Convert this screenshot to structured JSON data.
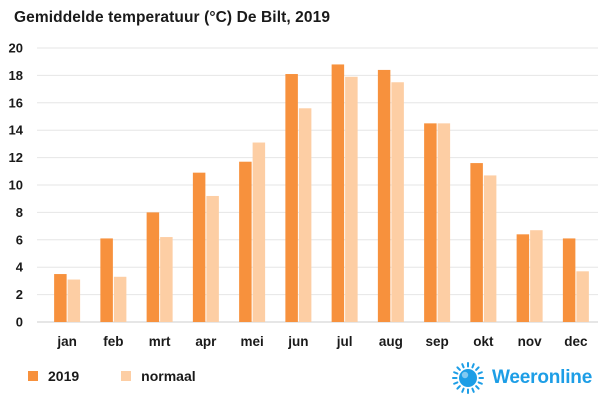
{
  "chart_data": {
    "type": "bar",
    "title": "Gemiddelde temperatuur (°C) De Bilt, 2019",
    "xlabel": "",
    "ylabel": "",
    "ylim": [
      0,
      20
    ],
    "yticks": [
      0,
      2,
      4,
      6,
      8,
      10,
      12,
      14,
      16,
      18,
      20
    ],
    "grid": true,
    "legend_position": "bottom-left",
    "categories": [
      "jan",
      "feb",
      "mrt",
      "apr",
      "mei",
      "jun",
      "jul",
      "aug",
      "sep",
      "okt",
      "nov",
      "dec"
    ],
    "series": [
      {
        "name": "2019",
        "color": "#f7913d",
        "values": [
          3.5,
          6.1,
          8.0,
          10.9,
          11.7,
          18.1,
          18.8,
          18.4,
          14.5,
          11.6,
          6.4,
          6.1
        ]
      },
      {
        "name": "normaal",
        "color": "#fdcea4",
        "values": [
          3.1,
          3.3,
          6.2,
          9.2,
          13.1,
          15.6,
          17.9,
          17.5,
          14.5,
          10.7,
          6.7,
          3.7
        ]
      }
    ]
  },
  "brand": {
    "name": "Weeronline",
    "icon": "sun-globe-icon",
    "color": "#1d9ee6"
  },
  "colors": {
    "grid": "#e6e6e6",
    "axis": "#cccccc",
    "text": "#1a1a1a"
  }
}
